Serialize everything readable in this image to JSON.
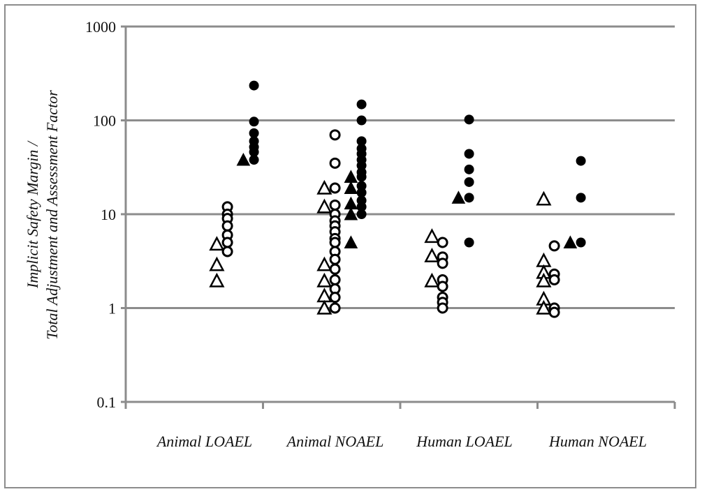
{
  "chart_data": {
    "type": "scatter",
    "ylabel_lines": [
      "Implicit Safety Margin /",
      "Total Adjustment and Assessment  Factor"
    ],
    "yscale": "log",
    "ylim": [
      0.1,
      1000
    ],
    "yticks": [
      {
        "value": 0.1,
        "label": "0.1"
      },
      {
        "value": 1,
        "label": "1"
      },
      {
        "value": 10,
        "label": "10"
      },
      {
        "value": 100,
        "label": "100"
      },
      {
        "value": 1000,
        "label": "1000"
      }
    ],
    "grid": true,
    "categories": [
      "Animal LOAEL",
      "Animal NOAEL",
      "Human  LOAEL",
      "Human  NOAEL"
    ],
    "legend": "none",
    "series": [
      {
        "marker": "triangle-open",
        "points": [
          {
            "cat": 0,
            "offset": -1.4,
            "y": 4.8
          },
          {
            "cat": 0,
            "offset": -1.4,
            "y": 2.9
          },
          {
            "cat": 0,
            "offset": -1.4,
            "y": 1.95
          },
          {
            "cat": 1,
            "offset": -1.4,
            "y": 19
          },
          {
            "cat": 1,
            "offset": -1.4,
            "y": 12
          },
          {
            "cat": 1,
            "offset": -1.4,
            "y": 2.9
          },
          {
            "cat": 1,
            "offset": -1.4,
            "y": 1.95
          },
          {
            "cat": 1,
            "offset": -1.4,
            "y": 1.35
          },
          {
            "cat": 1,
            "offset": -1.4,
            "y": 1.0
          },
          {
            "cat": 2,
            "offset": -1.4,
            "y": 5.8
          },
          {
            "cat": 2,
            "offset": -1.4,
            "y": 3.6
          },
          {
            "cat": 2,
            "offset": -1.4,
            "y": 1.95
          },
          {
            "cat": 3,
            "offset": -1.4,
            "y": 14.5
          },
          {
            "cat": 3,
            "offset": -1.4,
            "y": 3.2
          },
          {
            "cat": 3,
            "offset": -1.4,
            "y": 2.4
          },
          {
            "cat": 3,
            "offset": -1.4,
            "y": 1.95
          },
          {
            "cat": 3,
            "offset": -1.4,
            "y": 1.25
          },
          {
            "cat": 3,
            "offset": -1.4,
            "y": 1.0
          }
        ]
      },
      {
        "marker": "circle-open",
        "points": [
          {
            "cat": 0,
            "offset": -0.6,
            "y": 12
          },
          {
            "cat": 0,
            "offset": -0.6,
            "y": 10
          },
          {
            "cat": 0,
            "offset": -0.6,
            "y": 9
          },
          {
            "cat": 0,
            "offset": -0.6,
            "y": 7.5
          },
          {
            "cat": 0,
            "offset": -0.6,
            "y": 6
          },
          {
            "cat": 0,
            "offset": -0.6,
            "y": 5
          },
          {
            "cat": 0,
            "offset": -0.6,
            "y": 4
          },
          {
            "cat": 1,
            "offset": -0.6,
            "y": 70
          },
          {
            "cat": 1,
            "offset": -0.6,
            "y": 35
          },
          {
            "cat": 1,
            "offset": -0.6,
            "y": 19
          },
          {
            "cat": 1,
            "offset": -0.6,
            "y": 12.5
          },
          {
            "cat": 1,
            "offset": -0.6,
            "y": 10
          },
          {
            "cat": 1,
            "offset": -0.6,
            "y": 8.5
          },
          {
            "cat": 1,
            "offset": -0.6,
            "y": 7.5
          },
          {
            "cat": 1,
            "offset": -0.6,
            "y": 6.5
          },
          {
            "cat": 1,
            "offset": -0.6,
            "y": 5.5
          },
          {
            "cat": 1,
            "offset": -0.6,
            "y": 5
          },
          {
            "cat": 1,
            "offset": -0.6,
            "y": 4
          },
          {
            "cat": 1,
            "offset": -0.6,
            "y": 3.3
          },
          {
            "cat": 1,
            "offset": -0.6,
            "y": 2.6
          },
          {
            "cat": 1,
            "offset": -0.6,
            "y": 2
          },
          {
            "cat": 1,
            "offset": -0.6,
            "y": 1.6
          },
          {
            "cat": 1,
            "offset": -0.6,
            "y": 1.3
          },
          {
            "cat": 1,
            "offset": -0.6,
            "y": 1.0
          },
          {
            "cat": 2,
            "offset": -0.6,
            "y": 5
          },
          {
            "cat": 2,
            "offset": -0.6,
            "y": 3.5
          },
          {
            "cat": 2,
            "offset": -0.6,
            "y": 3
          },
          {
            "cat": 2,
            "offset": -0.6,
            "y": 2
          },
          {
            "cat": 2,
            "offset": -0.6,
            "y": 1.7
          },
          {
            "cat": 2,
            "offset": -0.6,
            "y": 1.3
          },
          {
            "cat": 2,
            "offset": -0.6,
            "y": 1.15
          },
          {
            "cat": 2,
            "offset": -0.6,
            "y": 1.0
          },
          {
            "cat": 3,
            "offset": -0.6,
            "y": 4.6
          },
          {
            "cat": 3,
            "offset": -0.6,
            "y": 2.3
          },
          {
            "cat": 3,
            "offset": -0.6,
            "y": 2.0
          },
          {
            "cat": 3,
            "offset": -0.6,
            "y": 1.0
          },
          {
            "cat": 3,
            "offset": -0.6,
            "y": 0.9
          }
        ]
      },
      {
        "marker": "triangle-filled",
        "points": [
          {
            "cat": 0,
            "offset": 0.6,
            "y": 38
          },
          {
            "cat": 1,
            "offset": 0.6,
            "y": 25
          },
          {
            "cat": 1,
            "offset": 0.6,
            "y": 19
          },
          {
            "cat": 1,
            "offset": 0.6,
            "y": 13
          },
          {
            "cat": 1,
            "offset": 0.6,
            "y": 10
          },
          {
            "cat": 1,
            "offset": 0.6,
            "y": 5
          },
          {
            "cat": 2,
            "offset": 0.6,
            "y": 15
          },
          {
            "cat": 3,
            "offset": 0.6,
            "y": 5
          }
        ]
      },
      {
        "marker": "circle-filled",
        "points": [
          {
            "cat": 0,
            "offset": 1.4,
            "y": 235
          },
          {
            "cat": 0,
            "offset": 1.4,
            "y": 97
          },
          {
            "cat": 0,
            "offset": 1.4,
            "y": 73
          },
          {
            "cat": 0,
            "offset": 1.4,
            "y": 60
          },
          {
            "cat": 0,
            "offset": 1.4,
            "y": 52
          },
          {
            "cat": 0,
            "offset": 1.4,
            "y": 46
          },
          {
            "cat": 0,
            "offset": 1.4,
            "y": 38
          },
          {
            "cat": 1,
            "offset": 1.4,
            "y": 148
          },
          {
            "cat": 1,
            "offset": 1.4,
            "y": 100
          },
          {
            "cat": 1,
            "offset": 1.4,
            "y": 60
          },
          {
            "cat": 1,
            "offset": 1.4,
            "y": 50
          },
          {
            "cat": 1,
            "offset": 1.4,
            "y": 44
          },
          {
            "cat": 1,
            "offset": 1.4,
            "y": 38
          },
          {
            "cat": 1,
            "offset": 1.4,
            "y": 33
          },
          {
            "cat": 1,
            "offset": 1.4,
            "y": 28
          },
          {
            "cat": 1,
            "offset": 1.4,
            "y": 25
          },
          {
            "cat": 1,
            "offset": 1.4,
            "y": 20
          },
          {
            "cat": 1,
            "offset": 1.4,
            "y": 17
          },
          {
            "cat": 1,
            "offset": 1.4,
            "y": 14
          },
          {
            "cat": 1,
            "offset": 1.4,
            "y": 12
          },
          {
            "cat": 1,
            "offset": 1.4,
            "y": 10
          },
          {
            "cat": 2,
            "offset": 1.4,
            "y": 102
          },
          {
            "cat": 2,
            "offset": 1.4,
            "y": 44
          },
          {
            "cat": 2,
            "offset": 1.4,
            "y": 30
          },
          {
            "cat": 2,
            "offset": 1.4,
            "y": 22
          },
          {
            "cat": 2,
            "offset": 1.4,
            "y": 15
          },
          {
            "cat": 2,
            "offset": 1.4,
            "y": 5
          },
          {
            "cat": 3,
            "offset": 1.4,
            "y": 37
          },
          {
            "cat": 3,
            "offset": 1.4,
            "y": 15
          },
          {
            "cat": 3,
            "offset": 1.4,
            "y": 5
          }
        ]
      }
    ],
    "colors": {
      "axis": "#8c8c8c",
      "gridline": "#8c8c8c",
      "marker": "#000000"
    }
  }
}
